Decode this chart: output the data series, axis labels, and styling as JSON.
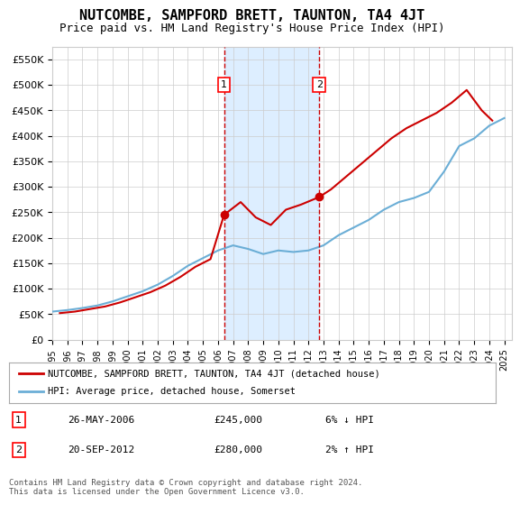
{
  "title": "NUTCOMBE, SAMPFORD BRETT, TAUNTON, TA4 4JT",
  "subtitle": "Price paid vs. HM Land Registry's House Price Index (HPI)",
  "ylabel_ticks": [
    "£0",
    "£50K",
    "£100K",
    "£150K",
    "£200K",
    "£250K",
    "£300K",
    "£350K",
    "£400K",
    "£450K",
    "£500K",
    "£550K"
  ],
  "ytick_values": [
    0,
    50000,
    100000,
    150000,
    200000,
    250000,
    300000,
    350000,
    400000,
    450000,
    500000,
    550000
  ],
  "ylim": [
    0,
    575000
  ],
  "xlim_start": 1995.0,
  "xlim_end": 2025.5,
  "sale1": {
    "date": "2006-05-26",
    "price": 245000,
    "x": 2006.4,
    "label": "1"
  },
  "sale2": {
    "date": "2012-09-20",
    "price": 280000,
    "x": 2012.72,
    "label": "2"
  },
  "hpi_line_color": "#6baed6",
  "price_line_color": "#cc0000",
  "vline_color": "#cc0000",
  "shade_color": "#ddeeff",
  "background_color": "#ffffff",
  "grid_color": "#cccccc",
  "legend_label_red": "NUTCOMBE, SAMPFORD BRETT, TAUNTON, TA4 4JT (detached house)",
  "legend_label_blue": "HPI: Average price, detached house, Somerset",
  "annotation1_label": "1",
  "annotation1_date": "26-MAY-2006",
  "annotation1_price": "£245,000",
  "annotation1_hpi": "6% ↓ HPI",
  "annotation2_label": "2",
  "annotation2_date": "20-SEP-2012",
  "annotation2_price": "£280,000",
  "annotation2_hpi": "2% ↑ HPI",
  "footer": "Contains HM Land Registry data © Crown copyright and database right 2024.\nThis data is licensed under the Open Government Licence v3.0.",
  "hpi_data": {
    "years": [
      1995,
      1996,
      1997,
      1998,
      1999,
      2000,
      2001,
      2002,
      2003,
      2004,
      2005,
      2006,
      2007,
      2008,
      2009,
      2010,
      2011,
      2012,
      2013,
      2014,
      2015,
      2016,
      2017,
      2018,
      2019,
      2020,
      2021,
      2022,
      2023,
      2024,
      2025
    ],
    "values": [
      55000,
      58000,
      62000,
      67000,
      75000,
      85000,
      95000,
      108000,
      125000,
      145000,
      160000,
      175000,
      185000,
      178000,
      168000,
      175000,
      172000,
      175000,
      185000,
      205000,
      220000,
      235000,
      255000,
      270000,
      278000,
      290000,
      330000,
      380000,
      395000,
      420000,
      435000
    ]
  },
  "price_paid_data": {
    "x": [
      1995.5,
      1996.5,
      1997.5,
      1998.5,
      1999.5,
      2000.5,
      2001.5,
      2002.5,
      2003.5,
      2004.5,
      2005.5,
      2006.4,
      2007.5,
      2008.5,
      2009.5,
      2010.5,
      2011.5,
      2012.72,
      2013.5,
      2014.5,
      2015.5,
      2016.5,
      2017.5,
      2018.5,
      2019.5,
      2020.5,
      2021.5,
      2022.5,
      2023.5,
      2024.2
    ],
    "values": [
      52000,
      55000,
      60000,
      65000,
      73000,
      83000,
      93000,
      106000,
      123000,
      143000,
      158000,
      245000,
      270000,
      240000,
      225000,
      255000,
      265000,
      280000,
      295000,
      320000,
      345000,
      370000,
      395000,
      415000,
      430000,
      445000,
      465000,
      490000,
      450000,
      430000
    ]
  }
}
